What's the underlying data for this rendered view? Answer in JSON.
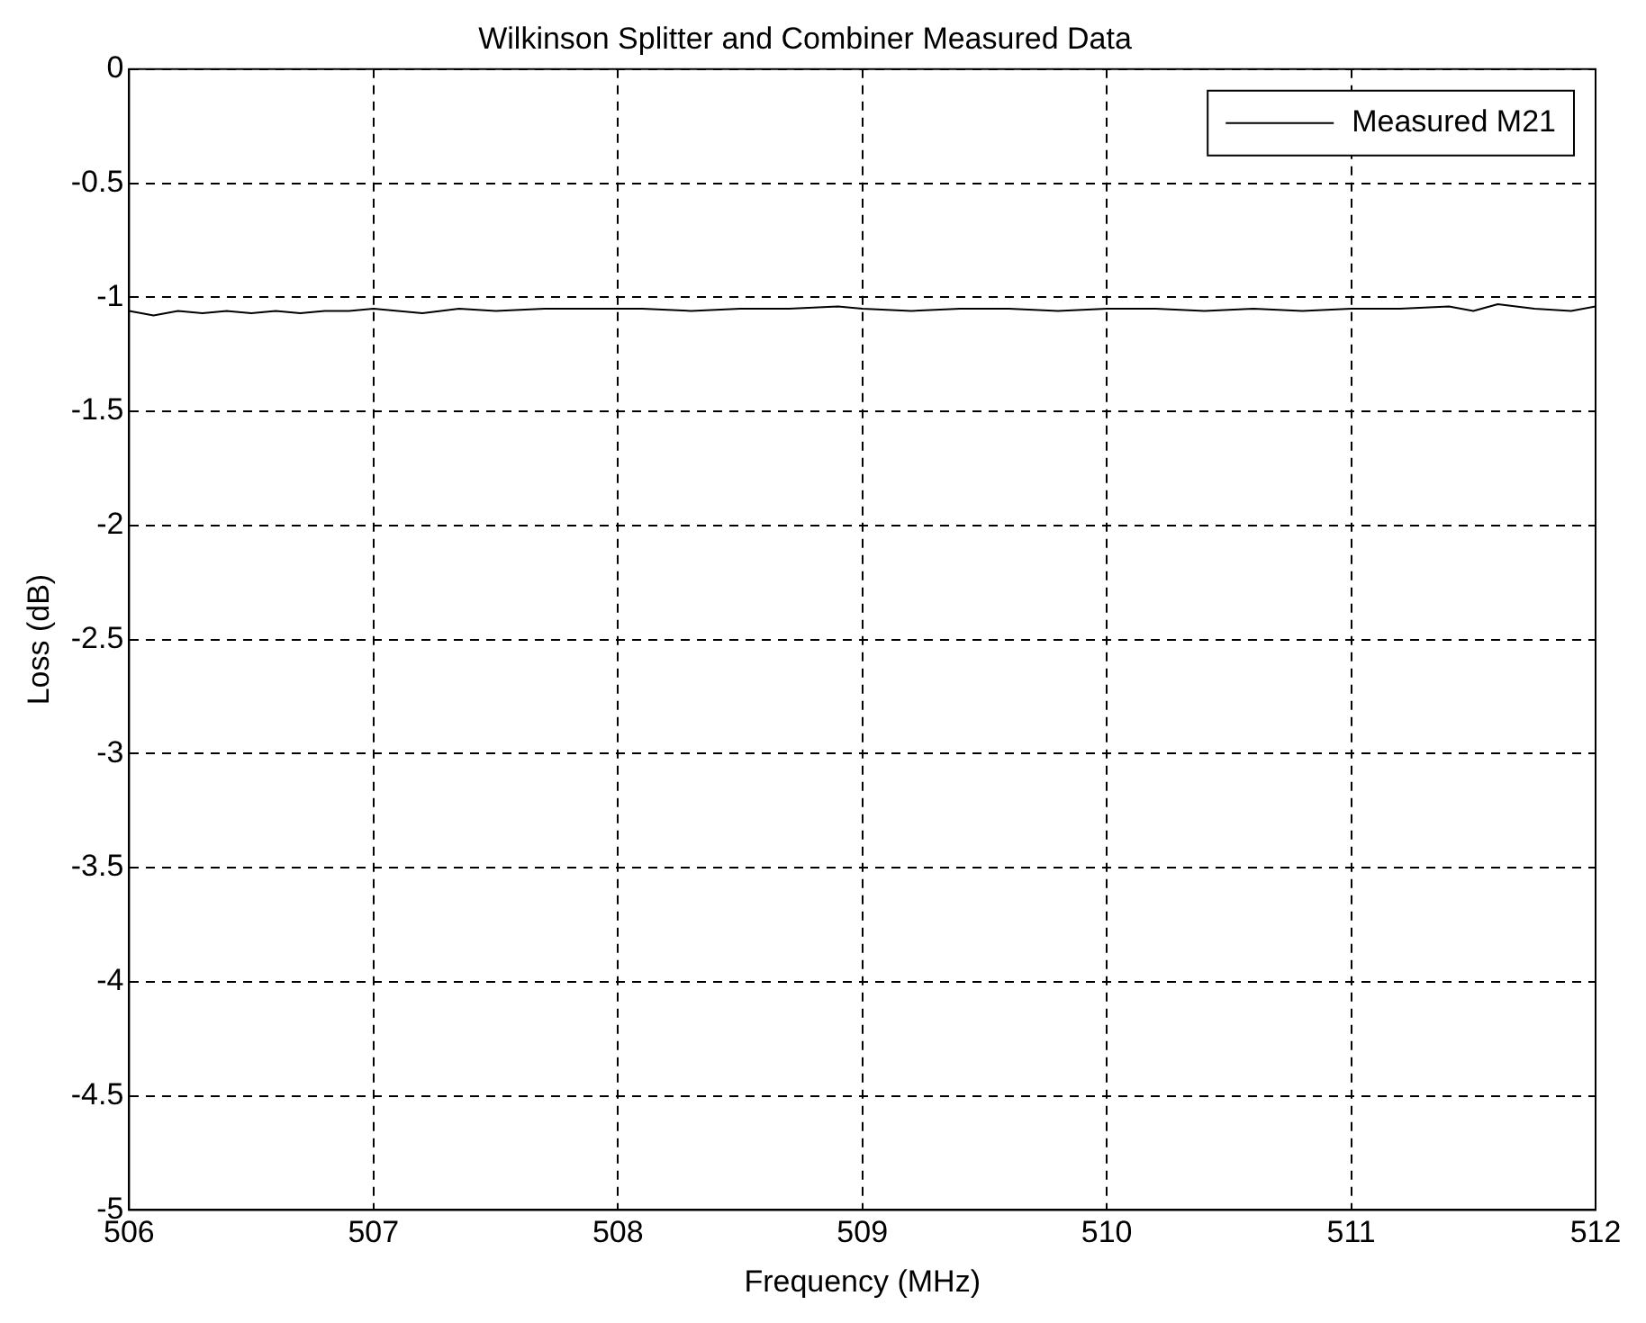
{
  "chart_data": {
    "type": "line",
    "title": "Wilkinson Splitter and Combiner Measured Data",
    "xlabel": "Frequency (MHz)",
    "ylabel": "Loss (dB)",
    "x": [
      506,
      506.1,
      506.2,
      506.3,
      506.4,
      506.5,
      506.6,
      506.7,
      506.8,
      506.9,
      507,
      507.1,
      507.2,
      507.35,
      507.5,
      507.7,
      507.9,
      508.1,
      508.3,
      508.5,
      508.7,
      508.9,
      509,
      509.2,
      509.4,
      509.6,
      509.8,
      510,
      510.2,
      510.4,
      510.6,
      510.8,
      511,
      511.2,
      511.4,
      511.5,
      511.6,
      511.75,
      511.9,
      512
    ],
    "series": [
      {
        "name": "Measured M21",
        "color": "#000000",
        "values": [
          -1.06,
          -1.08,
          -1.06,
          -1.07,
          -1.06,
          -1.07,
          -1.06,
          -1.07,
          -1.06,
          -1.06,
          -1.05,
          -1.06,
          -1.07,
          -1.05,
          -1.06,
          -1.05,
          -1.05,
          -1.05,
          -1.06,
          -1.05,
          -1.05,
          -1.04,
          -1.05,
          -1.06,
          -1.05,
          -1.05,
          -1.06,
          -1.05,
          -1.05,
          -1.06,
          -1.05,
          -1.06,
          -1.05,
          -1.05,
          -1.04,
          -1.06,
          -1.03,
          -1.05,
          -1.06,
          -1.04
        ]
      }
    ],
    "xlim": [
      506,
      512
    ],
    "xticks": [
      506,
      507,
      508,
      509,
      510,
      511,
      512
    ],
    "ylim": [
      -5,
      0
    ],
    "yticks": [
      -5,
      -4.5,
      -4,
      -3.5,
      -3,
      -2.5,
      -2,
      -1.5,
      -1,
      -0.5,
      0
    ],
    "grid": true,
    "legend": "top right",
    "marker": "none",
    "line_style": "solid"
  }
}
